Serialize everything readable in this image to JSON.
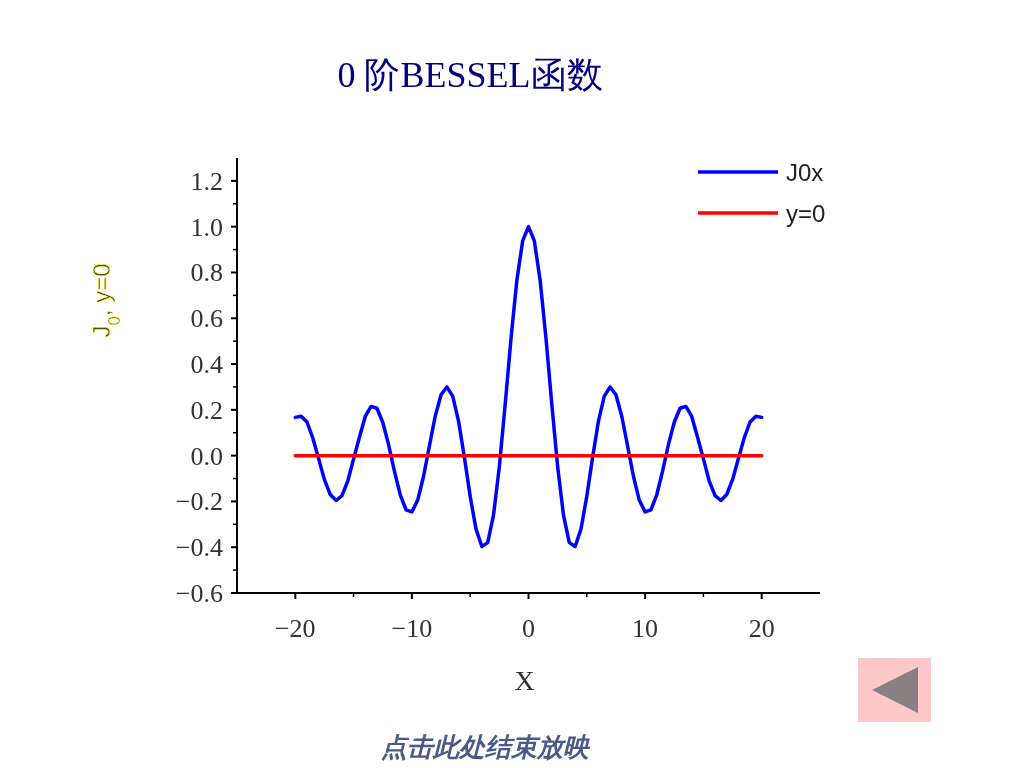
{
  "chart_data": {
    "type": "line",
    "title": "0 阶BESSEL函数",
    "xlabel": "X",
    "ylabel": "J$_{0}$, y=0",
    "xlim": [
      -25,
      25
    ],
    "xticks": [
      {
        "value": -20,
        "label": "−20"
      },
      {
        "value": -10,
        "label": "−10"
      },
      0,
      10,
      20
    ],
    "ylim": [
      -0.6,
      1.3
    ],
    "yticks": [
      {
        "value": -0.6,
        "label": "−0.6"
      },
      {
        "value": -0.4,
        "label": "−0.4"
      },
      {
        "value": -0.2,
        "label": "−0.2"
      },
      {
        "value": 0,
        "label": "0.0"
      },
      {
        "value": 0.2,
        "label": "0.2"
      },
      {
        "value": 0.4,
        "label": "0.4"
      },
      {
        "value": 0.6,
        "label": "0.6"
      },
      {
        "value": 0.8,
        "label": "0.8"
      },
      {
        "value": 1.0,
        "label": "1.0"
      },
      {
        "value": 1.2,
        "label": "1.2"
      }
    ],
    "legend": "top right",
    "series": [
      {
        "name": "J0x",
        "color": "#0000ff",
        "x": [
          -20,
          -19.5,
          -19,
          -18.5,
          -18,
          -17.5,
          -17,
          -16.5,
          -16,
          -15.5,
          -15,
          -14.5,
          -14,
          -13.5,
          -13,
          -12.5,
          -12,
          -11.5,
          -11,
          -10.5,
          -10,
          -9.5,
          -9,
          -8.5,
          -8,
          -7.5,
          -7,
          -6.5,
          -6,
          -5.5,
          -5,
          -4.5,
          -4,
          -3.5,
          -3,
          -2.5,
          -2,
          -1.5,
          -1,
          -0.5,
          0,
          0.5,
          1,
          1.5,
          2,
          2.5,
          3,
          3.5,
          4,
          4.5,
          5,
          5.5,
          6,
          6.5,
          7,
          7.5,
          8,
          8.5,
          9,
          9.5,
          10,
          10.5,
          11,
          11.5,
          12,
          12.5,
          13,
          13.5,
          14,
          14.5,
          15,
          15.5,
          16,
          16.5,
          17,
          17.5,
          18,
          18.5,
          19,
          19.5,
          20
        ],
        "values": [
          0.167,
          0.172,
          0.147,
          0.077,
          -0.013,
          -0.105,
          -0.17,
          -0.196,
          -0.175,
          -0.111,
          -0.014,
          0.08,
          0.171,
          0.215,
          0.207,
          0.146,
          0.048,
          -0.068,
          -0.171,
          -0.237,
          -0.246,
          -0.194,
          -0.09,
          0.042,
          0.172,
          0.266,
          0.3,
          0.26,
          0.151,
          -0.007,
          -0.178,
          -0.321,
          -0.397,
          -0.38,
          -0.26,
          -0.048,
          0.224,
          0.512,
          0.765,
          0.938,
          1.0,
          0.938,
          0.765,
          0.512,
          0.224,
          -0.048,
          -0.26,
          -0.38,
          -0.397,
          -0.321,
          -0.178,
          -0.007,
          0.151,
          0.26,
          0.3,
          0.266,
          0.172,
          0.042,
          -0.09,
          -0.194,
          -0.246,
          -0.237,
          -0.171,
          -0.068,
          0.048,
          0.146,
          0.207,
          0.215,
          0.171,
          0.08,
          -0.014,
          -0.111,
          -0.175,
          -0.196,
          -0.17,
          -0.105,
          -0.013,
          0.077,
          0.147,
          0.172,
          0.167
        ]
      },
      {
        "name": "y=0",
        "color": "#ff0000",
        "x": [
          -20,
          20
        ],
        "values": [
          0,
          0
        ]
      }
    ],
    "annotations": [
      "点击此处结束放映"
    ]
  }
}
